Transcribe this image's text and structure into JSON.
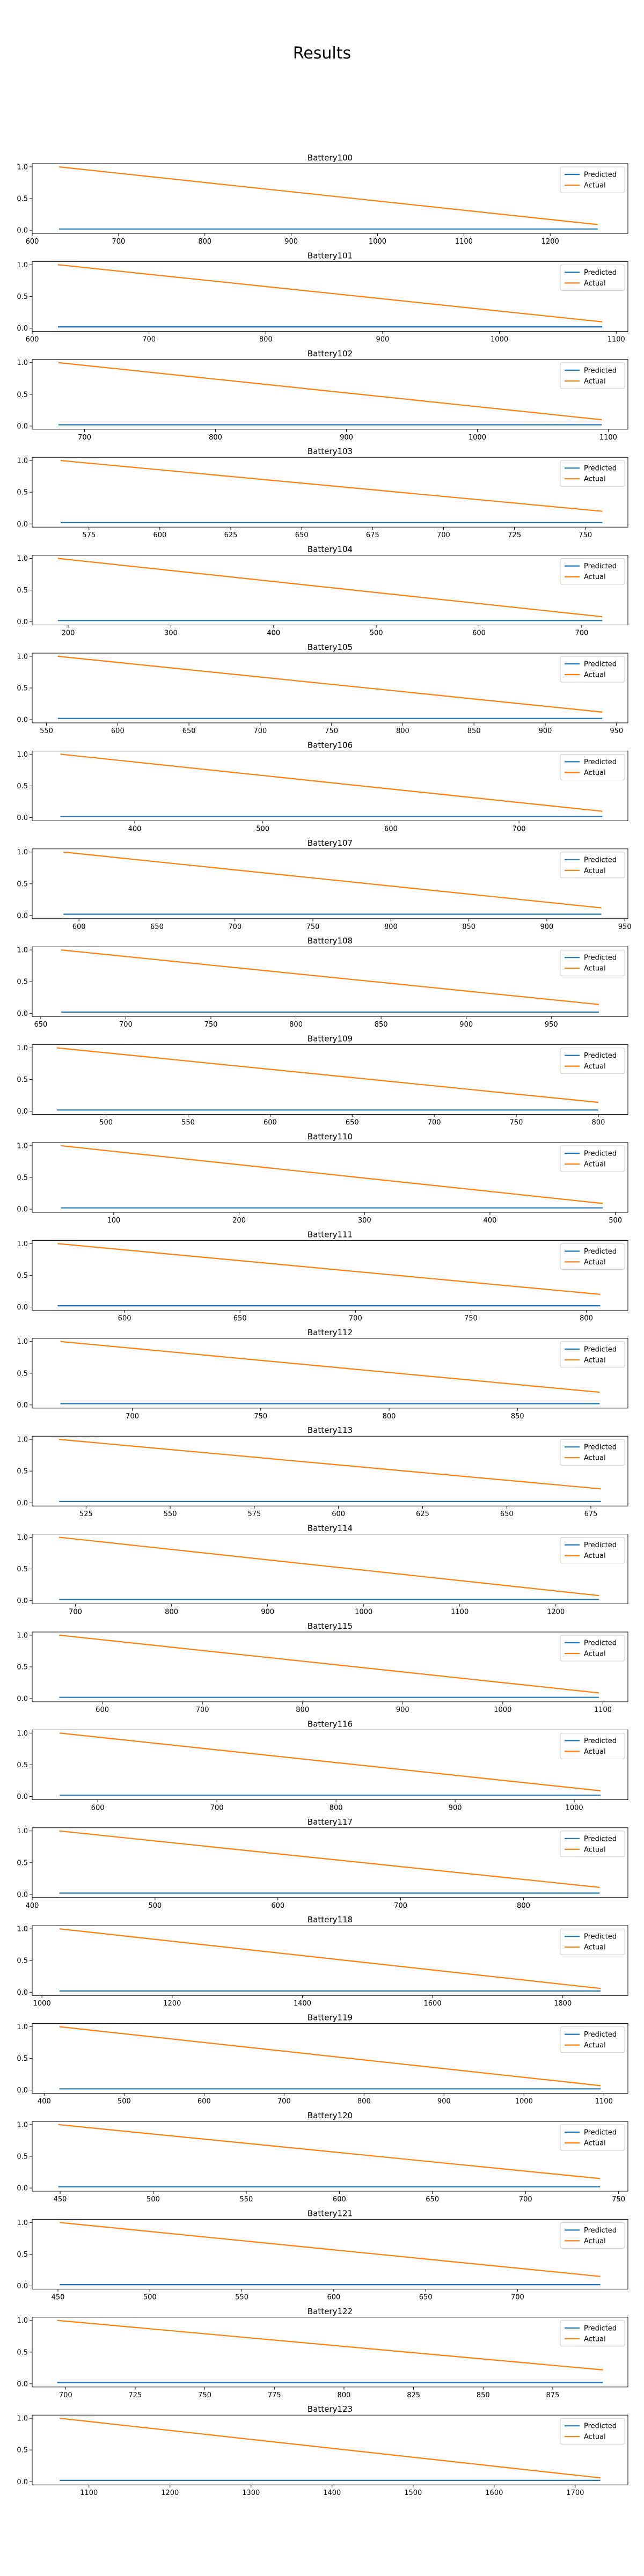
{
  "page": {
    "title": "Results"
  },
  "legend_labels": [
    "Predicted",
    "Actual"
  ],
  "colors": {
    "predicted": "#1f77b4",
    "actual": "#ff7f0e",
    "axes": "#000000"
  },
  "chart_data": [
    {
      "type": "line",
      "title": "Battery100",
      "xlim": [
        600,
        1290
      ],
      "ylim": [
        -0.05,
        1.05
      ],
      "xticks": [
        600,
        700,
        800,
        900,
        1000,
        1100,
        1200
      ],
      "yticks": [
        0.0,
        0.5,
        1.0
      ],
      "legend": "top-right",
      "grid": false,
      "series": [
        {
          "name": "Predicted",
          "x": [
            631,
            1255
          ],
          "y": [
            0.02,
            0.02
          ]
        },
        {
          "name": "Actual",
          "x": [
            631,
            1255
          ],
          "y": [
            1.0,
            0.09
          ]
        }
      ]
    },
    {
      "type": "line",
      "title": "Battery101",
      "xlim": [
        600,
        1110
      ],
      "ylim": [
        -0.05,
        1.05
      ],
      "xticks": [
        600,
        700,
        800,
        900,
        1000,
        1100
      ],
      "yticks": [
        0.0,
        0.5,
        1.0
      ],
      "legend": "top-right",
      "grid": false,
      "series": [
        {
          "name": "Predicted",
          "x": [
            622,
            1088
          ],
          "y": [
            0.02,
            0.02
          ]
        },
        {
          "name": "Actual",
          "x": [
            622,
            1088
          ],
          "y": [
            1.0,
            0.1
          ]
        }
      ]
    },
    {
      "type": "line",
      "title": "Battery102",
      "xlim": [
        660,
        1115
      ],
      "ylim": [
        -0.05,
        1.05
      ],
      "xticks": [
        700,
        800,
        900,
        1000,
        1100
      ],
      "yticks": [
        0.0,
        0.5,
        1.0
      ],
      "legend": "top-right",
      "grid": false,
      "series": [
        {
          "name": "Predicted",
          "x": [
            680,
            1095
          ],
          "y": [
            0.02,
            0.02
          ]
        },
        {
          "name": "Actual",
          "x": [
            680,
            1095
          ],
          "y": [
            1.0,
            0.1
          ]
        }
      ]
    },
    {
      "type": "line",
      "title": "Battery103",
      "xlim": [
        555,
        765
      ],
      "ylim": [
        -0.05,
        1.05
      ],
      "xticks": [
        575,
        600,
        625,
        650,
        675,
        700,
        725,
        750
      ],
      "yticks": [
        0.0,
        0.5,
        1.0
      ],
      "legend": "top-right",
      "grid": false,
      "series": [
        {
          "name": "Predicted",
          "x": [
            565,
            756
          ],
          "y": [
            0.02,
            0.02
          ]
        },
        {
          "name": "Actual",
          "x": [
            565,
            756
          ],
          "y": [
            1.0,
            0.2
          ]
        }
      ]
    },
    {
      "type": "line",
      "title": "Battery104",
      "xlim": [
        165,
        745
      ],
      "ylim": [
        -0.05,
        1.05
      ],
      "xticks": [
        200,
        300,
        400,
        500,
        600,
        700
      ],
      "yticks": [
        0.0,
        0.5,
        1.0
      ],
      "legend": "top-right",
      "grid": false,
      "series": [
        {
          "name": "Predicted",
          "x": [
            190,
            720
          ],
          "y": [
            0.02,
            0.02
          ]
        },
        {
          "name": "Actual",
          "x": [
            190,
            720
          ],
          "y": [
            1.0,
            0.08
          ]
        }
      ]
    },
    {
      "type": "line",
      "title": "Battery105",
      "xlim": [
        540,
        958
      ],
      "ylim": [
        -0.05,
        1.05
      ],
      "xticks": [
        550,
        600,
        650,
        700,
        750,
        800,
        850,
        900,
        950
      ],
      "yticks": [
        0.0,
        0.5,
        1.0
      ],
      "legend": "top-right",
      "grid": false,
      "series": [
        {
          "name": "Predicted",
          "x": [
            558,
            940
          ],
          "y": [
            0.02,
            0.02
          ]
        },
        {
          "name": "Actual",
          "x": [
            558,
            940
          ],
          "y": [
            1.0,
            0.12
          ]
        }
      ]
    },
    {
      "type": "line",
      "title": "Battery106",
      "xlim": [
        320,
        785
      ],
      "ylim": [
        -0.05,
        1.05
      ],
      "xticks": [
        400,
        500,
        600,
        700
      ],
      "yticks": [
        0.0,
        0.5,
        1.0
      ],
      "legend": "top-right",
      "grid": false,
      "series": [
        {
          "name": "Predicted",
          "x": [
            342,
            765
          ],
          "y": [
            0.02,
            0.02
          ]
        },
        {
          "name": "Actual",
          "x": [
            342,
            765
          ],
          "y": [
            1.0,
            0.1
          ]
        }
      ]
    },
    {
      "type": "line",
      "title": "Battery107",
      "xlim": [
        570,
        952
      ],
      "ylim": [
        -0.05,
        1.05
      ],
      "xticks": [
        600,
        650,
        700,
        750,
        800,
        850,
        900,
        950
      ],
      "yticks": [
        0.0,
        0.5,
        1.0
      ],
      "legend": "top-right",
      "grid": false,
      "series": [
        {
          "name": "Predicted",
          "x": [
            590,
            935
          ],
          "y": [
            0.02,
            0.02
          ]
        },
        {
          "name": "Actual",
          "x": [
            590,
            935
          ],
          "y": [
            1.0,
            0.12
          ]
        }
      ]
    },
    {
      "type": "line",
      "title": "Battery108",
      "xlim": [
        645,
        995
      ],
      "ylim": [
        -0.05,
        1.05
      ],
      "xticks": [
        650,
        700,
        750,
        800,
        850,
        900,
        950
      ],
      "yticks": [
        0.0,
        0.5,
        1.0
      ],
      "legend": "top-right",
      "grid": false,
      "series": [
        {
          "name": "Predicted",
          "x": [
            662,
            978
          ],
          "y": [
            0.02,
            0.02
          ]
        },
        {
          "name": "Actual",
          "x": [
            662,
            978
          ],
          "y": [
            1.0,
            0.14
          ]
        }
      ]
    },
    {
      "type": "line",
      "title": "Battery109",
      "xlim": [
        455,
        818
      ],
      "ylim": [
        -0.05,
        1.05
      ],
      "xticks": [
        500,
        550,
        600,
        650,
        700,
        750,
        800
      ],
      "yticks": [
        0.0,
        0.5,
        1.0
      ],
      "legend": "top-right",
      "grid": false,
      "series": [
        {
          "name": "Predicted",
          "x": [
            470,
            800
          ],
          "y": [
            0.02,
            0.02
          ]
        },
        {
          "name": "Actual",
          "x": [
            470,
            800
          ],
          "y": [
            1.0,
            0.14
          ]
        }
      ]
    },
    {
      "type": "line",
      "title": "Battery110",
      "xlim": [
        35,
        510
      ],
      "ylim": [
        -0.05,
        1.05
      ],
      "xticks": [
        100,
        200,
        300,
        400,
        500
      ],
      "yticks": [
        0.0,
        0.5,
        1.0
      ],
      "legend": "top-right",
      "grid": false,
      "series": [
        {
          "name": "Predicted",
          "x": [
            58,
            490
          ],
          "y": [
            0.02,
            0.02
          ]
        },
        {
          "name": "Actual",
          "x": [
            58,
            490
          ],
          "y": [
            1.0,
            0.09
          ]
        }
      ]
    },
    {
      "type": "line",
      "title": "Battery111",
      "xlim": [
        560,
        818
      ],
      "ylim": [
        -0.05,
        1.05
      ],
      "xticks": [
        600,
        650,
        700,
        750,
        800
      ],
      "yticks": [
        0.0,
        0.5,
        1.0
      ],
      "legend": "top-right",
      "grid": false,
      "series": [
        {
          "name": "Predicted",
          "x": [
            571,
            806
          ],
          "y": [
            0.02,
            0.02
          ]
        },
        {
          "name": "Actual",
          "x": [
            571,
            806
          ],
          "y": [
            1.0,
            0.2
          ]
        }
      ]
    },
    {
      "type": "line",
      "title": "Battery112",
      "xlim": [
        661,
        893
      ],
      "ylim": [
        -0.05,
        1.05
      ],
      "xticks": [
        700,
        750,
        800,
        850
      ],
      "yticks": [
        0.0,
        0.5,
        1.0
      ],
      "legend": "top-right",
      "grid": false,
      "series": [
        {
          "name": "Predicted",
          "x": [
            672,
            882
          ],
          "y": [
            0.02,
            0.02
          ]
        },
        {
          "name": "Actual",
          "x": [
            672,
            882
          ],
          "y": [
            1.0,
            0.2
          ]
        }
      ]
    },
    {
      "type": "line",
      "title": "Battery113",
      "xlim": [
        509,
        686
      ],
      "ylim": [
        -0.05,
        1.05
      ],
      "xticks": [
        525,
        550,
        575,
        600,
        625,
        650,
        675
      ],
      "yticks": [
        0.0,
        0.5,
        1.0
      ],
      "legend": "top-right",
      "grid": false,
      "series": [
        {
          "name": "Predicted",
          "x": [
            517,
            678
          ],
          "y": [
            0.02,
            0.02
          ]
        },
        {
          "name": "Actual",
          "x": [
            517,
            678
          ],
          "y": [
            1.0,
            0.22
          ]
        }
      ]
    },
    {
      "type": "line",
      "title": "Battery114",
      "xlim": [
        655,
        1275
      ],
      "ylim": [
        -0.05,
        1.05
      ],
      "xticks": [
        700,
        800,
        900,
        1000,
        1100,
        1200
      ],
      "yticks": [
        0.0,
        0.5,
        1.0
      ],
      "legend": "top-right",
      "grid": false,
      "series": [
        {
          "name": "Predicted",
          "x": [
            683,
            1245
          ],
          "y": [
            0.02,
            0.02
          ]
        },
        {
          "name": "Actual",
          "x": [
            683,
            1245
          ],
          "y": [
            1.0,
            0.08
          ]
        }
      ]
    },
    {
      "type": "line",
      "title": "Battery115",
      "xlim": [
        530,
        1125
      ],
      "ylim": [
        -0.05,
        1.05
      ],
      "xticks": [
        600,
        700,
        800,
        900,
        1000,
        1100
      ],
      "yticks": [
        0.0,
        0.5,
        1.0
      ],
      "legend": "top-right",
      "grid": false,
      "series": [
        {
          "name": "Predicted",
          "x": [
            557,
            1096
          ],
          "y": [
            0.02,
            0.02
          ]
        },
        {
          "name": "Actual",
          "x": [
            557,
            1096
          ],
          "y": [
            1.0,
            0.09
          ]
        }
      ]
    },
    {
      "type": "line",
      "title": "Battery116",
      "xlim": [
        545,
        1045
      ],
      "ylim": [
        -0.05,
        1.05
      ],
      "xticks": [
        600,
        700,
        800,
        900,
        1000
      ],
      "yticks": [
        0.0,
        0.5,
        1.0
      ],
      "legend": "top-right",
      "grid": false,
      "series": [
        {
          "name": "Predicted",
          "x": [
            568,
            1022
          ],
          "y": [
            0.02,
            0.02
          ]
        },
        {
          "name": "Actual",
          "x": [
            568,
            1022
          ],
          "y": [
            1.0,
            0.09
          ]
        }
      ]
    },
    {
      "type": "line",
      "title": "Battery117",
      "xlim": [
        400,
        885
      ],
      "ylim": [
        -0.05,
        1.05
      ],
      "xticks": [
        400,
        500,
        600,
        700,
        800
      ],
      "yticks": [
        0.0,
        0.5,
        1.0
      ],
      "legend": "top-right",
      "grid": false,
      "series": [
        {
          "name": "Predicted",
          "x": [
            422,
            862
          ],
          "y": [
            0.02,
            0.02
          ]
        },
        {
          "name": "Actual",
          "x": [
            422,
            862
          ],
          "y": [
            1.0,
            0.11
          ]
        }
      ]
    },
    {
      "type": "line",
      "title": "Battery118",
      "xlim": [
        985,
        1900
      ],
      "ylim": [
        -0.05,
        1.05
      ],
      "xticks": [
        1000,
        1200,
        1400,
        1600,
        1800
      ],
      "yticks": [
        0.0,
        0.5,
        1.0
      ],
      "legend": "top-right",
      "grid": false,
      "series": [
        {
          "name": "Predicted",
          "x": [
            1027,
            1858
          ],
          "y": [
            0.02,
            0.02
          ]
        },
        {
          "name": "Actual",
          "x": [
            1027,
            1858
          ],
          "y": [
            1.0,
            0.06
          ]
        }
      ]
    },
    {
      "type": "line",
      "title": "Battery119",
      "xlim": [
        385,
        1130
      ],
      "ylim": [
        -0.05,
        1.05
      ],
      "xticks": [
        400,
        500,
        600,
        700,
        800,
        900,
        1000,
        1100
      ],
      "yticks": [
        0.0,
        0.5,
        1.0
      ],
      "legend": "top-right",
      "grid": false,
      "series": [
        {
          "name": "Predicted",
          "x": [
            419,
            1096
          ],
          "y": [
            0.02,
            0.02
          ]
        },
        {
          "name": "Actual",
          "x": [
            419,
            1096
          ],
          "y": [
            1.0,
            0.07
          ]
        }
      ]
    },
    {
      "type": "line",
      "title": "Battery120",
      "xlim": [
        435,
        755
      ],
      "ylim": [
        -0.05,
        1.05
      ],
      "xticks": [
        450,
        500,
        550,
        600,
        650,
        700,
        750
      ],
      "yticks": [
        0.0,
        0.5,
        1.0
      ],
      "legend": "top-right",
      "grid": false,
      "series": [
        {
          "name": "Predicted",
          "x": [
            449,
            740
          ],
          "y": [
            0.02,
            0.02
          ]
        },
        {
          "name": "Actual",
          "x": [
            449,
            740
          ],
          "y": [
            1.0,
            0.15
          ]
        }
      ]
    },
    {
      "type": "line",
      "title": "Battery121",
      "xlim": [
        436,
        760
      ],
      "ylim": [
        -0.05,
        1.05
      ],
      "xticks": [
        450,
        500,
        550,
        600,
        650,
        700
      ],
      "yticks": [
        0.0,
        0.5,
        1.0
      ],
      "legend": "top-right",
      "grid": false,
      "series": [
        {
          "name": "Predicted",
          "x": [
            451,
            745
          ],
          "y": [
            0.02,
            0.02
          ]
        },
        {
          "name": "Actual",
          "x": [
            451,
            745
          ],
          "y": [
            1.0,
            0.15
          ]
        }
      ]
    },
    {
      "type": "line",
      "title": "Battery122",
      "xlim": [
        688,
        902
      ],
      "ylim": [
        -0.05,
        1.05
      ],
      "xticks": [
        700,
        725,
        750,
        775,
        800,
        825,
        850,
        875
      ],
      "yticks": [
        0.0,
        0.5,
        1.0
      ],
      "legend": "top-right",
      "grid": false,
      "series": [
        {
          "name": "Predicted",
          "x": [
            697,
            893
          ],
          "y": [
            0.02,
            0.02
          ]
        },
        {
          "name": "Actual",
          "x": [
            697,
            893
          ],
          "y": [
            1.0,
            0.22
          ]
        }
      ]
    },
    {
      "type": "line",
      "title": "Battery123",
      "xlim": [
        1030,
        1765
      ],
      "ylim": [
        -0.05,
        1.05
      ],
      "xticks": [
        1100,
        1200,
        1300,
        1400,
        1500,
        1600,
        1700
      ],
      "yticks": [
        0.0,
        0.5,
        1.0
      ],
      "legend": "top-right",
      "grid": false,
      "series": [
        {
          "name": "Predicted",
          "x": [
            1064,
            1731
          ],
          "y": [
            0.02,
            0.02
          ]
        },
        {
          "name": "Actual",
          "x": [
            1064,
            1731
          ],
          "y": [
            1.0,
            0.06
          ]
        }
      ]
    }
  ]
}
